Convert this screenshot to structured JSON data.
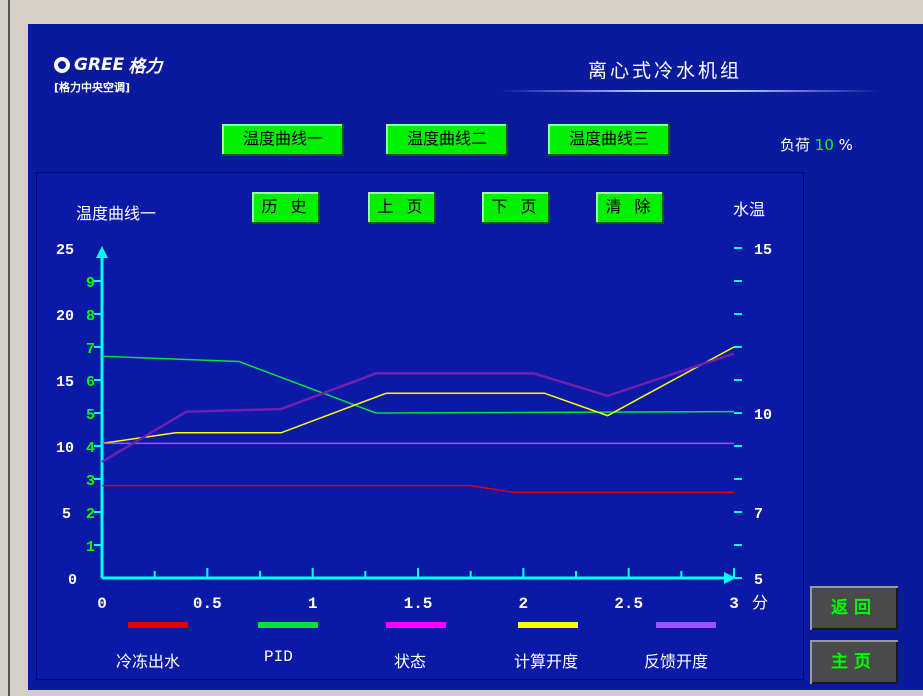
{
  "brand": {
    "logo_text": "GREE",
    "logo_sub": "[格力中央空调]",
    "logo_script": "格力"
  },
  "app_title": "离心式冷水机组",
  "curve_tabs": [
    "温度曲线一",
    "温度曲线二",
    "温度曲线三"
  ],
  "load": {
    "label": "负荷",
    "value": "10",
    "unit": "%"
  },
  "chart_controls": [
    "历 史",
    "上 页",
    "下 页",
    "清 除"
  ],
  "nav": {
    "back": "返回",
    "home": "主页"
  },
  "colors": {
    "screen_bg": "#0a1a9c",
    "button_green": "#00f000",
    "axis_cyan": "#00ffff"
  },
  "chart_data": {
    "type": "line",
    "title": "温度曲线一",
    "right_axis_label": "水温",
    "x_unit": "分",
    "xlim": [
      0,
      3
    ],
    "x_ticks": [
      "0",
      "0.5",
      "1",
      "1.5",
      "2",
      "2.5",
      "3"
    ],
    "left_ticks_white": [
      "0",
      "5",
      "10",
      "15",
      "20",
      "25"
    ],
    "left_ticks_green": [
      "1",
      "2",
      "3",
      "4",
      "5",
      "6",
      "7",
      "8",
      "9"
    ],
    "right_ticks": [
      "5",
      "7",
      "10",
      "15"
    ],
    "ylim": [
      0,
      25
    ],
    "series": [
      {
        "name": "冷冻出水",
        "color": "#e00000",
        "x": [
          0,
          1.75,
          1.95,
          3
        ],
        "y": [
          7.0,
          7.0,
          6.5,
          6.5
        ]
      },
      {
        "name": "PID",
        "color": "#00e040",
        "x": [
          0,
          0.65,
          1.3,
          3
        ],
        "y": [
          16.8,
          16.4,
          12.5,
          12.6
        ]
      },
      {
        "name": "状态",
        "color": "#ff00ff",
        "x": [],
        "y": []
      },
      {
        "name": "计算开度",
        "color": "#ffff00",
        "x": [
          0,
          0.35,
          0.85,
          1.35,
          2.1,
          2.4,
          3
        ],
        "y": [
          10.2,
          11.0,
          11.0,
          14.0,
          14.0,
          12.3,
          17.5
        ]
      },
      {
        "name": "反馈开度",
        "color": "#a050ff",
        "x": [
          0,
          3
        ],
        "y": [
          10.2,
          10.2
        ]
      },
      {
        "name": "",
        "color": "#7020b0",
        "x": [
          0,
          0.4,
          0.85,
          1.3,
          2.05,
          2.4,
          3
        ],
        "y": [
          8.8,
          12.6,
          12.8,
          15.5,
          15.5,
          13.8,
          17.0
        ]
      }
    ]
  }
}
